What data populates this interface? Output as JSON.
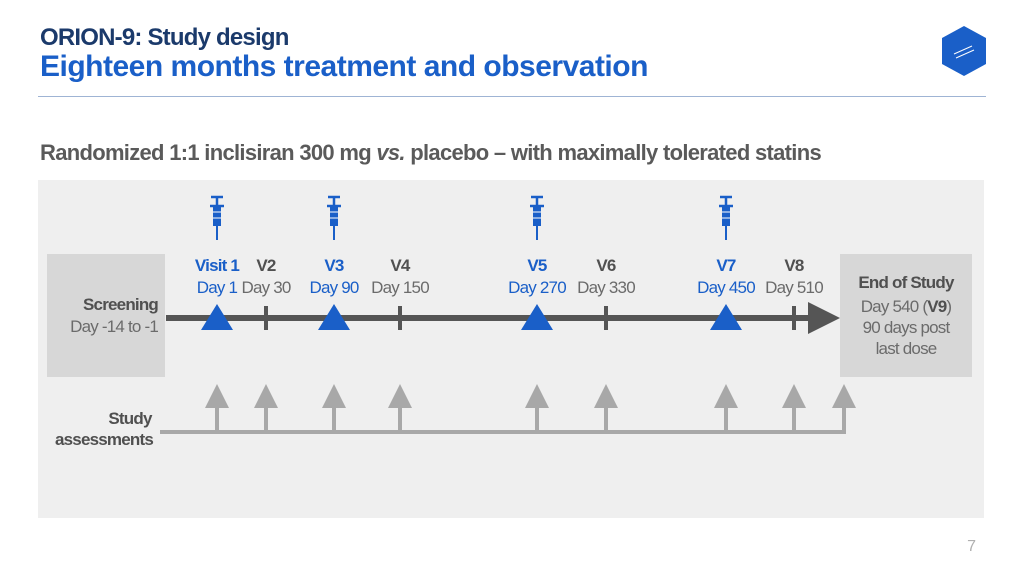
{
  "header": {
    "title": "ORION-9: Study design",
    "headline": "Eighteen months treatment and observation"
  },
  "subtitle": {
    "part1": "Randomized 1:1 inclisiran 300 mg ",
    "part2": "vs.",
    "part3": " placebo – with maximally tolerated statins"
  },
  "screening": {
    "label": "Screening",
    "days": "Day -14 to -1"
  },
  "assessments": {
    "label_line1": "Study",
    "label_line2": "assessments"
  },
  "visits": [
    {
      "label": "Visit 1",
      "day": "Day 1",
      "dose": true
    },
    {
      "label": "V2",
      "day": "Day 30",
      "dose": false
    },
    {
      "label": "V3",
      "day": "Day 90",
      "dose": true
    },
    {
      "label": "V4",
      "day": "Day 150",
      "dose": false
    },
    {
      "label": "V5",
      "day": "Day 270",
      "dose": true
    },
    {
      "label": "V6",
      "day": "Day 330",
      "dose": false
    },
    {
      "label": "V7",
      "day": "Day 450",
      "dose": true
    },
    {
      "label": "V8",
      "day": "Day 510",
      "dose": false
    }
  ],
  "end_of_study": {
    "title": "End of Study",
    "day_prefix": "Day 540 (",
    "visit": "V9",
    "day_suffix": ")",
    "line2": "90 days post",
    "line3": "last dose"
  },
  "page_number": "7",
  "colors": {
    "accent": "#1a5fc8",
    "dark_blue": "#1b3a6b",
    "axis": "#555555",
    "arrow": "#a8a8a8"
  }
}
